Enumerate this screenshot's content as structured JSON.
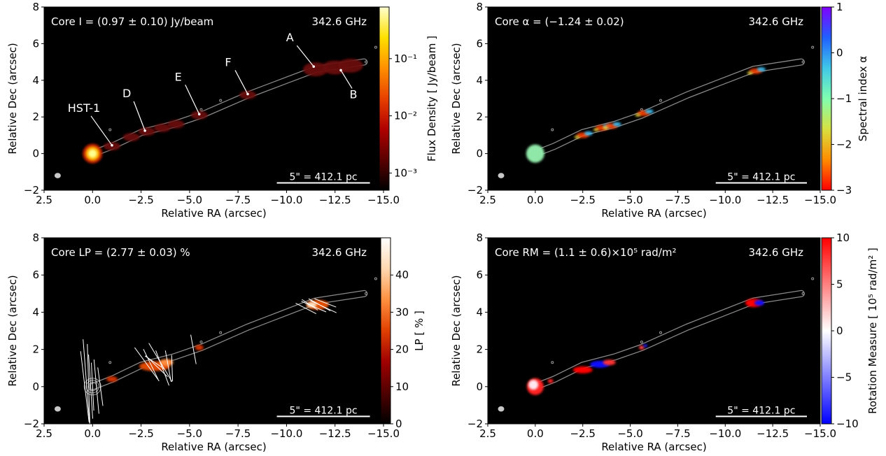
{
  "common": {
    "xlabel": "Relative RA (arcsec)",
    "ylabel": "Relative Dec (arcsec)",
    "frequency": "342.6 GHz",
    "scalebar": "5\" = 412.1 pc",
    "xlim": [
      2.5,
      -15.0
    ],
    "ylim": [
      -2,
      8
    ],
    "x_ticks": [
      "2.5",
      "0.0",
      "−2.5",
      "−5.0",
      "−7.5",
      "−10.0",
      "−12.5",
      "−15.0"
    ],
    "x_tick_values": [
      2.5,
      0.0,
      -2.5,
      -5.0,
      -7.5,
      -10.0,
      -12.5,
      -15.0
    ],
    "y_ticks": [
      "−2",
      "0",
      "2",
      "4",
      "6",
      "8"
    ],
    "y_tick_values": [
      -2,
      0,
      2,
      4,
      6,
      8
    ]
  },
  "chart_data": [
    {
      "type": "heatmap",
      "panel": "intensity",
      "core_text": "Core I = (0.97 ± 0.10) Jy/beam",
      "colorbar": {
        "label": "Flux Density [ Jy/beam ]",
        "scale": "log",
        "range": [
          0.0005,
          0.8
        ],
        "tick_values": [
          0.1,
          0.01,
          0.001
        ],
        "tick_labels": [
          "10⁻¹",
          "10⁻²",
          "10⁻³"
        ],
        "colormap": "hot",
        "colors": [
          "#000000",
          "#5a0000",
          "#b00000",
          "#e84000",
          "#ff9000",
          "#ffe000",
          "#ffffd0"
        ]
      },
      "knots": [
        {
          "label": "HST-1",
          "x": -1.0,
          "y": 0.45
        },
        {
          "label": "D",
          "x": -2.7,
          "y": 1.25
        },
        {
          "label": "E",
          "x": -5.5,
          "y": 2.15
        },
        {
          "label": "F",
          "x": -8.0,
          "y": 3.25
        },
        {
          "label": "A",
          "x": -11.4,
          "y": 4.75
        },
        {
          "label": "B",
          "x": -12.8,
          "y": 4.55
        }
      ],
      "core": {
        "x": 0.0,
        "y": 0.0,
        "flux": 0.97
      }
    },
    {
      "type": "heatmap",
      "panel": "spectral_index",
      "core_text": "Core α = (−1.24 ± 0.02)",
      "colorbar": {
        "label": "Spectral index α",
        "scale": "linear",
        "range": [
          -3,
          1
        ],
        "tick_values": [
          1,
          0,
          -1,
          -2,
          -3
        ],
        "tick_labels": [
          "1",
          "0",
          "−1",
          "−2",
          "−3"
        ],
        "colormap": "rainbow",
        "colors": [
          "#ff0000",
          "#ff8c00",
          "#d8e040",
          "#80ffb0",
          "#40c8e8",
          "#2060ff",
          "#8000ff"
        ]
      },
      "core": {
        "x": 0.0,
        "y": 0.0,
        "value": -1.24
      }
    },
    {
      "type": "heatmap",
      "panel": "linear_polarization",
      "core_text": "Core LP = (2.77 ± 0.03) %",
      "colorbar": {
        "label": "LP [ % ]",
        "scale": "linear",
        "range": [
          0,
          50
        ],
        "tick_values": [
          40,
          30,
          20,
          10,
          0
        ],
        "tick_labels": [
          "40",
          "30",
          "20",
          "10",
          "0"
        ],
        "colormap": "gist_heat",
        "colors": [
          "#000000",
          "#500000",
          "#a00000",
          "#e04000",
          "#ff9040",
          "#ffd8b0",
          "#ffffff"
        ]
      },
      "core": {
        "x": 0.0,
        "y": 0.0,
        "value": 2.77
      }
    },
    {
      "type": "heatmap",
      "panel": "rotation_measure",
      "core_text": "Core RM = (1.1 ± 0.6)×10⁵ rad/m²",
      "colorbar": {
        "label": "Rotation Measure [ 10⁵ rad/m² ]",
        "scale": "linear",
        "range": [
          -10,
          10
        ],
        "tick_values": [
          10,
          5,
          0,
          -5,
          -10
        ],
        "tick_labels": [
          "10",
          "5",
          "0",
          "−5",
          "−10"
        ],
        "colormap": "bwr",
        "colors": [
          "#0000ff",
          "#ffffff",
          "#ff0000"
        ]
      },
      "core": {
        "x": 0.0,
        "y": 0.0,
        "value": 1.1
      }
    }
  ]
}
